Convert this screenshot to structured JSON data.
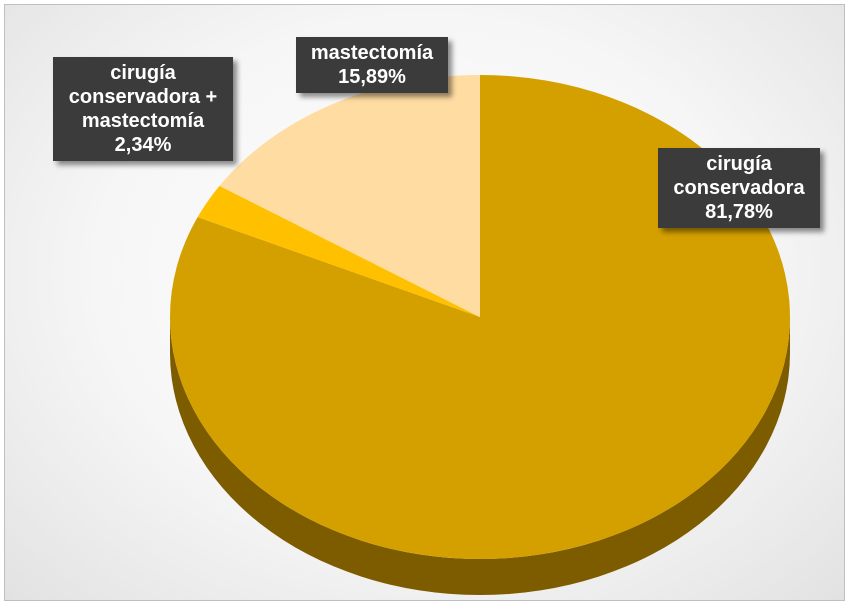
{
  "chart_data": {
    "type": "pie",
    "categories": [
      "cirugía conservadora",
      "cirugía conservadora + mastectomía",
      "mastectomía"
    ],
    "values": [
      81.78,
      2.34,
      15.89
    ],
    "value_labels": [
      "81,78%",
      "2,34%",
      "15,89%"
    ],
    "colors": [
      "#d4a000",
      "#ffc000",
      "#ffdca2"
    ],
    "side_colors": [
      "#7d5c00",
      "#a37c00",
      "#b89a6a"
    ]
  }
}
